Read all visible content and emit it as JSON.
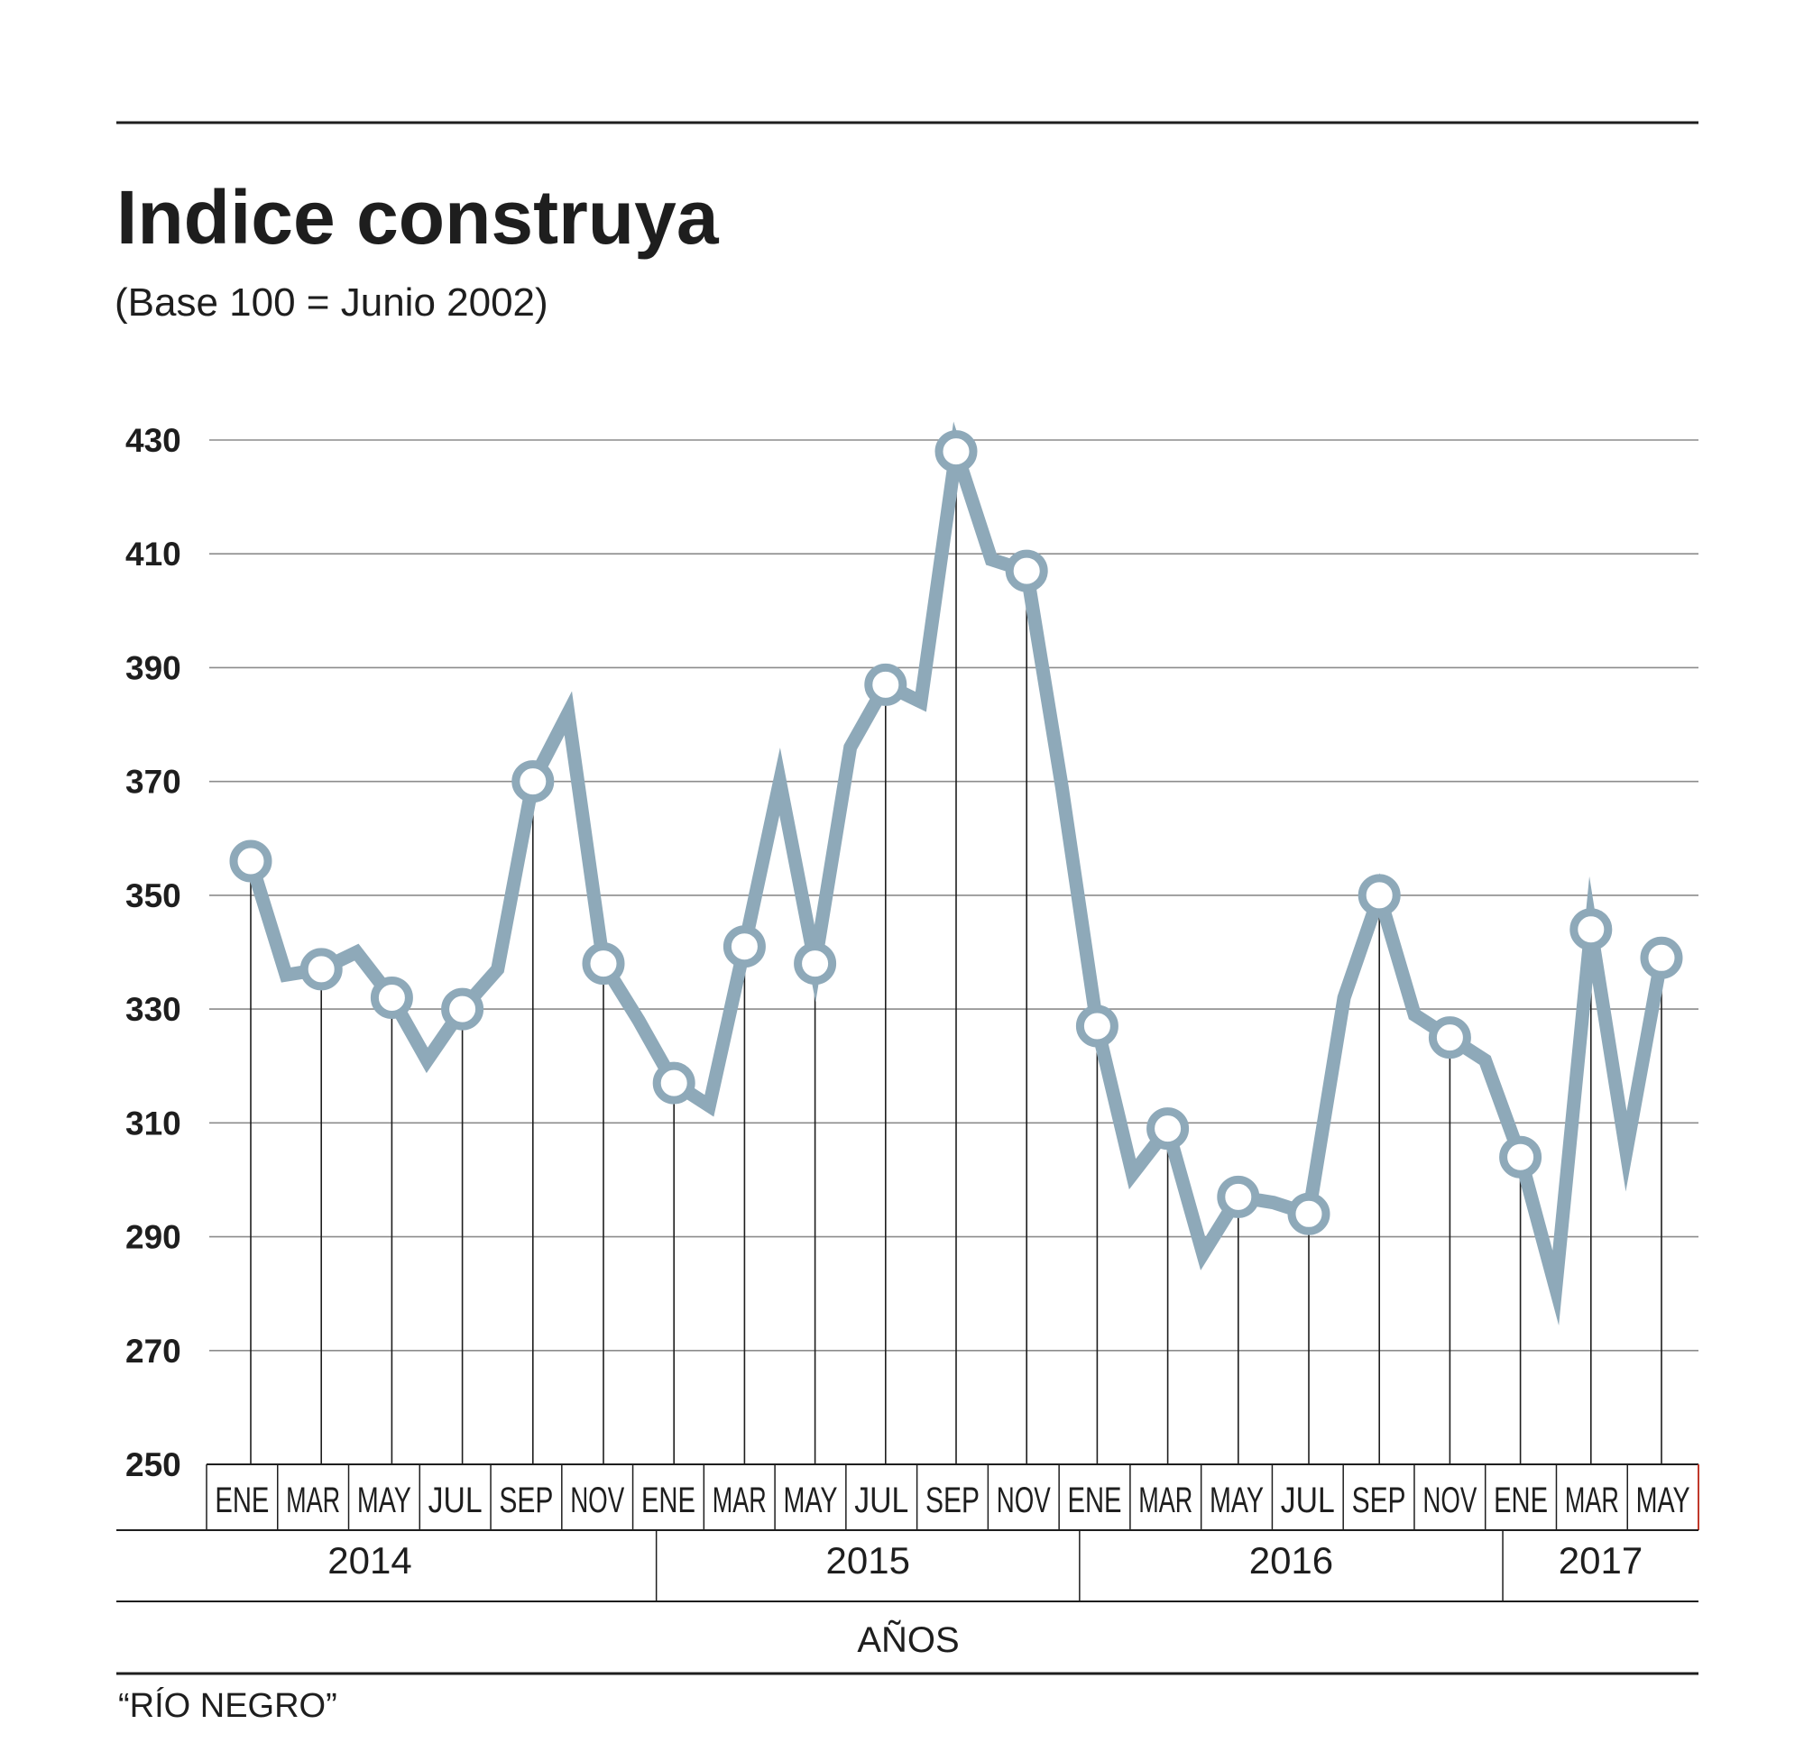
{
  "chart_data": {
    "type": "line",
    "title": "Indice construya",
    "subtitle": "(Base 100 = Junio 2002)",
    "xlabel": "AÑOS",
    "ylabel": "",
    "ylim": [
      250,
      430
    ],
    "yticks": [
      250,
      270,
      290,
      310,
      330,
      350,
      370,
      390,
      410,
      430
    ],
    "grid": true,
    "source": "“RÍO NEGRO”",
    "month_labels": [
      "ENE",
      "MAR",
      "MAY",
      "JUL",
      "SEP",
      "NOV",
      "ENE",
      "MAR",
      "MAY",
      "JUL",
      "SEP",
      "NOV",
      "ENE",
      "MAR",
      "MAY",
      "JUL",
      "SEP",
      "NOV",
      "ENE",
      "MAR",
      "MAY"
    ],
    "years": [
      {
        "label": "2014",
        "first_month": 1,
        "last_month": 12
      },
      {
        "label": "2015",
        "first_month": 13,
        "last_month": 24
      },
      {
        "label": "2016",
        "first_month": 25,
        "last_month": 36
      },
      {
        "label": "2017",
        "first_month": 37,
        "last_month": 41
      }
    ],
    "series": [
      {
        "name": "Indice construya",
        "color": "#8ea9b9",
        "month_index": [
          1,
          2,
          3,
          4,
          5,
          6,
          7,
          8,
          9,
          10,
          11,
          12,
          13,
          14,
          15,
          16,
          17,
          18,
          19,
          20,
          21,
          22,
          23,
          24,
          25,
          26,
          27,
          28,
          29,
          30,
          31,
          32,
          33,
          34,
          35,
          36,
          37,
          38,
          39,
          40,
          41
        ],
        "values": [
          356,
          336,
          337,
          340,
          332,
          321,
          330,
          337,
          370,
          382,
          338,
          328,
          317,
          313,
          341,
          370,
          338,
          376,
          387,
          384,
          428,
          409,
          407,
          369,
          327,
          301,
          309,
          287,
          297,
          296,
          294,
          332,
          350,
          329,
          325,
          321,
          304,
          281,
          344,
          305,
          339
        ],
        "marked": [
          true,
          false,
          true,
          false,
          true,
          false,
          true,
          false,
          true,
          false,
          true,
          false,
          true,
          false,
          true,
          false,
          true,
          false,
          true,
          false,
          true,
          false,
          true,
          false,
          true,
          false,
          true,
          false,
          true,
          false,
          true,
          false,
          true,
          false,
          true,
          false,
          true,
          false,
          true,
          false,
          true
        ]
      }
    ]
  }
}
